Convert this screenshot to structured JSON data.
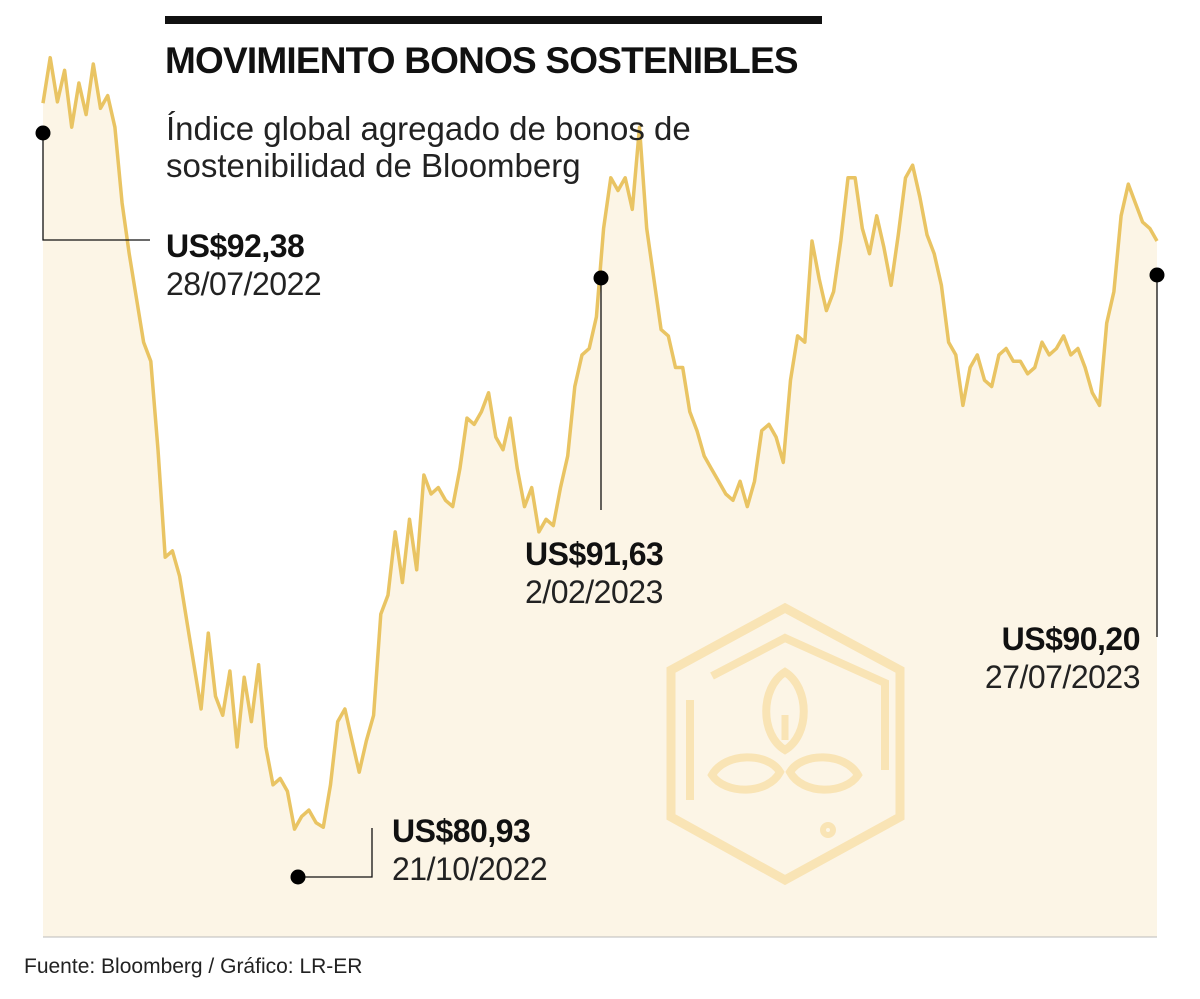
{
  "title": "MOVIMIENTO BONOS SOSTENIBLES",
  "subtitle": "Índice global agregado de bonos de sostenibilidad de Bloomberg",
  "source": "Fuente: Bloomberg / Gráfico: LR-ER",
  "colors": {
    "line": "#E9C463",
    "area_fill": "#FCF5E6",
    "logo": "#F9E4B5",
    "text": "#111111",
    "marker": "#000000"
  },
  "chart_data": {
    "type": "area",
    "title": "MOVIMIENTO BONOS SOSTENIBLES",
    "subtitle": "Índice global agregado de bonos de sostenibilidad de Bloomberg",
    "x_range": [
      "28/07/2022",
      "27/07/2023"
    ],
    "ylim": [
      80.0,
      93.0
    ],
    "grid": false,
    "legend": "none",
    "series": [
      {
        "values": [
          92.38,
          93.1,
          92.4,
          92.9,
          92.0,
          92.7,
          92.2,
          93.0,
          92.3,
          92.5,
          92.0,
          90.8,
          90.0,
          89.3,
          88.6,
          88.3,
          86.9,
          85.2,
          85.3,
          84.9,
          84.2,
          83.5,
          82.8,
          84.0,
          83.0,
          82.7,
          83.4,
          82.2,
          83.3,
          82.6,
          83.5,
          82.2,
          81.6,
          81.7,
          81.5,
          80.9,
          81.1,
          81.2,
          81.0,
          80.93,
          81.6,
          82.6,
          82.8,
          82.3,
          81.8,
          82.3,
          82.7,
          84.3,
          84.6,
          85.6,
          84.8,
          85.8,
          85.0,
          86.5,
          86.2,
          86.3,
          86.1,
          86.0,
          86.6,
          87.4,
          87.3,
          87.5,
          87.8,
          87.1,
          86.9,
          87.4,
          86.6,
          86.0,
          86.3,
          85.6,
          85.8,
          85.7,
          86.3,
          86.8,
          87.9,
          88.4,
          88.5,
          89.0,
          90.4,
          91.2,
          91.0,
          91.2,
          90.7,
          92.0,
          90.4,
          89.6,
          88.8,
          88.7,
          88.2,
          88.2,
          87.5,
          87.2,
          86.8,
          86.6,
          86.4,
          86.2,
          86.1,
          86.4,
          86.0,
          86.4,
          87.2,
          87.3,
          87.1,
          86.7,
          88.0,
          88.7,
          88.6,
          90.2,
          89.6,
          89.1,
          89.4,
          90.2,
          91.2,
          91.2,
          90.4,
          90.0,
          90.6,
          90.1,
          89.5,
          90.3,
          91.2,
          91.4,
          90.9,
          90.3,
          90.0,
          89.5,
          88.6,
          88.4,
          87.6,
          88.2,
          88.4,
          88.0,
          87.9,
          88.4,
          88.5,
          88.3,
          88.3,
          88.1,
          88.2,
          88.6,
          88.4,
          88.5,
          88.7,
          88.4,
          88.5,
          88.2,
          87.8,
          87.6,
          88.9,
          89.4,
          90.6,
          91.1,
          90.8,
          90.5,
          90.4,
          90.2
        ]
      }
    ],
    "annotations": [
      {
        "value": "US$92,38",
        "date": "28/07/2022"
      },
      {
        "value": "US$80,93",
        "date": "21/10/2022"
      },
      {
        "value": "US$91,63",
        "date": "2/02/2023"
      },
      {
        "value": "US$90,20",
        "date": "27/07/2023"
      }
    ]
  }
}
